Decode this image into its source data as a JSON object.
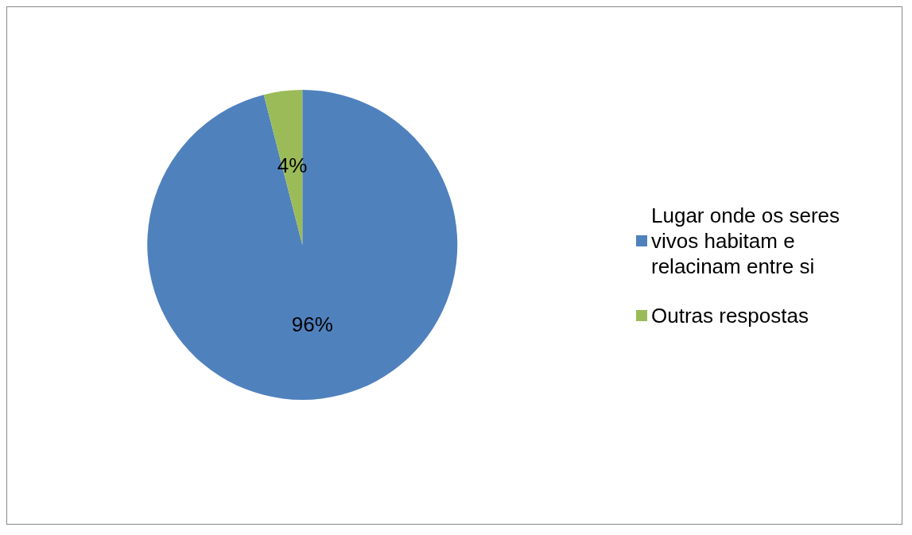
{
  "chart_data": {
    "type": "pie",
    "categories": [
      "Lugar onde os seres vivos habitam e relacinam entre si",
      "Outras respostas"
    ],
    "values": [
      96,
      4
    ],
    "value_labels": [
      "96%",
      "4%"
    ],
    "colors": [
      "#4f81bd",
      "#9bbb59"
    ],
    "legend": "right"
  }
}
